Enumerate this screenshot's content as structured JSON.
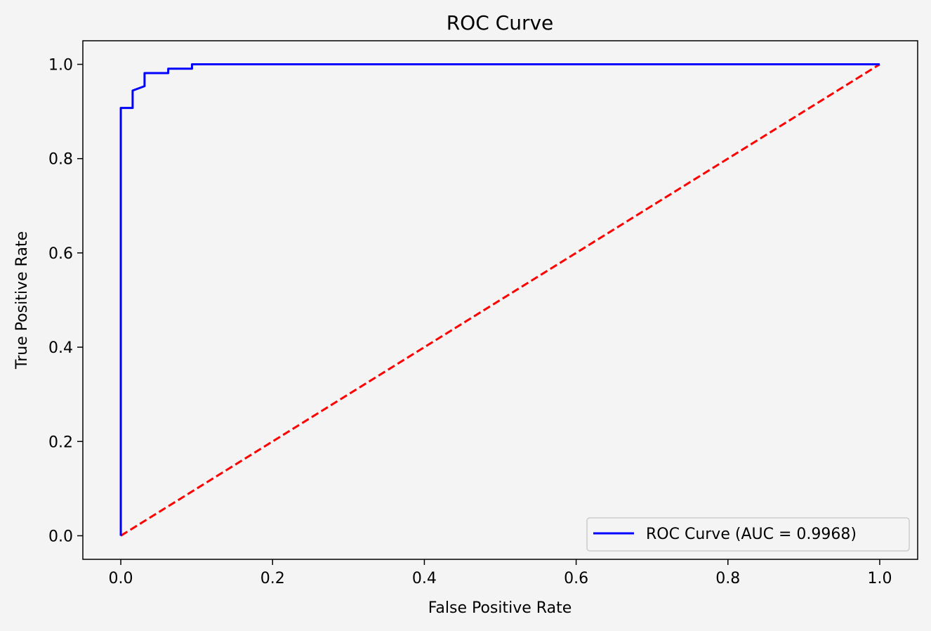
{
  "chart_data": {
    "type": "line",
    "title": "ROC Curve",
    "xlabel": "False Positive Rate",
    "ylabel": "True Positive Rate",
    "xlim": [
      -0.05,
      1.05
    ],
    "ylim": [
      -0.05,
      1.05
    ],
    "xticks": [
      0.0,
      0.2,
      0.4,
      0.6,
      0.8,
      1.0
    ],
    "xtick_labels": [
      "0.0",
      "0.2",
      "0.4",
      "0.6",
      "0.8",
      "1.0"
    ],
    "yticks": [
      0.0,
      0.2,
      0.4,
      0.6,
      0.8,
      1.0
    ],
    "ytick_labels": [
      "0.0",
      "0.2",
      "0.4",
      "0.6",
      "0.8",
      "1.0"
    ],
    "grid": false,
    "legend_position": "lower-right",
    "series": [
      {
        "name": "ROC Curve (AUC = 0.9968)",
        "color": "#0000ff",
        "style": "solid",
        "x": [
          0.0,
          0.0,
          0.0156,
          0.0156,
          0.0313,
          0.0313,
          0.0625,
          0.0625,
          0.0938,
          0.0938,
          1.0
        ],
        "y": [
          0.0,
          0.9074,
          0.9074,
          0.9444,
          0.9537,
          0.9815,
          0.9815,
          0.9907,
          0.9907,
          1.0,
          1.0
        ]
      },
      {
        "color": "#ff0000",
        "style": "dashed",
        "x": [
          0.0,
          1.0
        ],
        "y": [
          0.0,
          1.0
        ]
      }
    ]
  }
}
